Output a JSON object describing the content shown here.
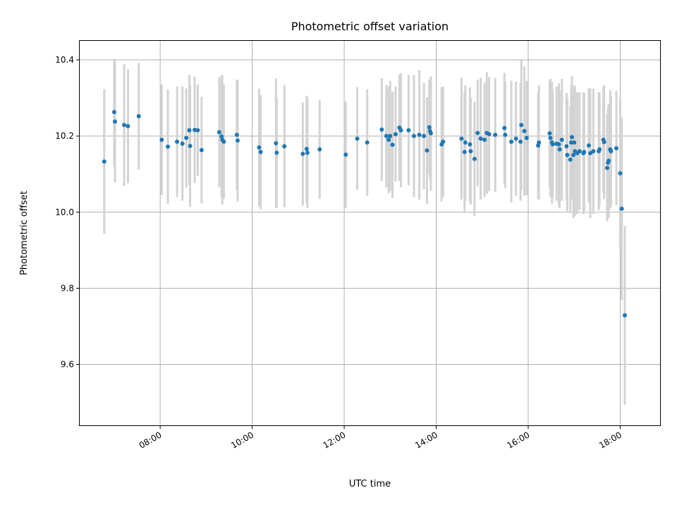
{
  "chart_data": {
    "type": "scatter",
    "title": "Photometric offset variation",
    "xlabel": "UTC time",
    "ylabel": "Photometric offset",
    "x_tick_labels": [
      "08:00",
      "10:00",
      "12:00",
      "14:00",
      "16:00",
      "18:00"
    ],
    "y_tick_labels": [
      "9.6",
      "9.8",
      "10.0",
      "10.2",
      "10.4"
    ],
    "xlim": [
      "06:15",
      "18:52"
    ],
    "ylim": [
      9.44,
      10.45
    ],
    "grid": true,
    "colors": {
      "point": "#1f77b4",
      "errorbar": "#d3d3d3"
    },
    "points": [
      {
        "x": "06:47",
        "y": 10.133,
        "err": 0.19
      },
      {
        "x": "07:00",
        "y": 10.263,
        "err": 0.14
      },
      {
        "x": "07:01",
        "y": 10.238,
        "err": 0.16
      },
      {
        "x": "07:13",
        "y": 10.229,
        "err": 0.16
      },
      {
        "x": "07:18",
        "y": 10.226,
        "err": 0.15
      },
      {
        "x": "07:32",
        "y": 10.252,
        "err": 0.14
      },
      {
        "x": "08:02",
        "y": 10.19,
        "err": 0.145
      },
      {
        "x": "08:10",
        "y": 10.172,
        "err": 0.15
      },
      {
        "x": "08:22",
        "y": 10.185,
        "err": 0.145
      },
      {
        "x": "08:29",
        "y": 10.18,
        "err": 0.15
      },
      {
        "x": "08:34",
        "y": 10.195,
        "err": 0.13
      },
      {
        "x": "08:38",
        "y": 10.215,
        "err": 0.145
      },
      {
        "x": "08:39",
        "y": 10.174,
        "err": 0.16
      },
      {
        "x": "08:45",
        "y": 10.216,
        "err": 0.14
      },
      {
        "x": "08:49",
        "y": 10.215,
        "err": 0.12
      },
      {
        "x": "08:54",
        "y": 10.163,
        "err": 0.14
      },
      {
        "x": "09:17",
        "y": 10.21,
        "err": 0.145
      },
      {
        "x": "09:20",
        "y": 10.199,
        "err": 0.16
      },
      {
        "x": "09:21",
        "y": 10.19,
        "err": 0.17
      },
      {
        "x": "09:23",
        "y": 10.185,
        "err": 0.15
      },
      {
        "x": "09:40",
        "y": 10.203,
        "err": 0.145
      },
      {
        "x": "09:41",
        "y": 10.188,
        "err": 0.16
      },
      {
        "x": "10:09",
        "y": 10.17,
        "err": 0.155
      },
      {
        "x": "10:11",
        "y": 10.158,
        "err": 0.15
      },
      {
        "x": "10:31",
        "y": 10.181,
        "err": 0.17
      },
      {
        "x": "10:32",
        "y": 10.156,
        "err": 0.145
      },
      {
        "x": "10:42",
        "y": 10.173,
        "err": 0.16
      },
      {
        "x": "11:06",
        "y": 10.153,
        "err": 0.135
      },
      {
        "x": "11:11",
        "y": 10.166,
        "err": 0.14
      },
      {
        "x": "11:12",
        "y": 10.156,
        "err": 0.145
      },
      {
        "x": "11:28",
        "y": 10.165,
        "err": 0.13
      },
      {
        "x": "12:02",
        "y": 10.151,
        "err": 0.14
      },
      {
        "x": "12:17",
        "y": 10.193,
        "err": 0.135
      },
      {
        "x": "12:30",
        "y": 10.183,
        "err": 0.14
      },
      {
        "x": "12:49",
        "y": 10.217,
        "err": 0.135
      },
      {
        "x": "12:55",
        "y": 10.2,
        "err": 0.135
      },
      {
        "x": "12:58",
        "y": 10.19,
        "err": 0.14
      },
      {
        "x": "13:00",
        "y": 10.2,
        "err": 0.145
      },
      {
        "x": "13:03",
        "y": 10.177,
        "err": 0.14
      },
      {
        "x": "13:07",
        "y": 10.205,
        "err": 0.125
      },
      {
        "x": "13:12",
        "y": 10.222,
        "err": 0.14
      },
      {
        "x": "13:14",
        "y": 10.215,
        "err": 0.15
      },
      {
        "x": "13:24",
        "y": 10.215,
        "err": 0.145
      },
      {
        "x": "13:31",
        "y": 10.2,
        "err": 0.16
      },
      {
        "x": "13:38",
        "y": 10.203,
        "err": 0.17
      },
      {
        "x": "13:44",
        "y": 10.2,
        "err": 0.14
      },
      {
        "x": "13:48",
        "y": 10.162,
        "err": 0.14
      },
      {
        "x": "13:51",
        "y": 10.223,
        "err": 0.125
      },
      {
        "x": "13:52",
        "y": 10.213,
        "err": 0.125
      },
      {
        "x": "13:53",
        "y": 10.207,
        "err": 0.15
      },
      {
        "x": "14:07",
        "y": 10.178,
        "err": 0.15
      },
      {
        "x": "14:09",
        "y": 10.185,
        "err": 0.145
      },
      {
        "x": "14:33",
        "y": 10.193,
        "err": 0.16
      },
      {
        "x": "14:37",
        "y": 10.158,
        "err": 0.16
      },
      {
        "x": "14:38",
        "y": 10.183,
        "err": 0.15
      },
      {
        "x": "14:44",
        "y": 10.178,
        "err": 0.15
      },
      {
        "x": "14:45",
        "y": 10.16,
        "err": 0.14
      },
      {
        "x": "14:50",
        "y": 10.14,
        "err": 0.15
      },
      {
        "x": "14:54",
        "y": 10.208,
        "err": 0.14
      },
      {
        "x": "14:58",
        "y": 10.193,
        "err": 0.16
      },
      {
        "x": "15:03",
        "y": 10.19,
        "err": 0.15
      },
      {
        "x": "15:06",
        "y": 10.208,
        "err": 0.16
      },
      {
        "x": "15:09",
        "y": 10.205,
        "err": 0.15
      },
      {
        "x": "15:17",
        "y": 10.203,
        "err": 0.15
      },
      {
        "x": "15:29",
        "y": 10.221,
        "err": 0.145
      },
      {
        "x": "15:30",
        "y": 10.203,
        "err": 0.14
      },
      {
        "x": "15:38",
        "y": 10.185,
        "err": 0.16
      },
      {
        "x": "15:44",
        "y": 10.193,
        "err": 0.15
      },
      {
        "x": "15:50",
        "y": 10.185,
        "err": 0.155
      },
      {
        "x": "15:51",
        "y": 10.229,
        "err": 0.17
      },
      {
        "x": "15:55",
        "y": 10.213,
        "err": 0.17
      },
      {
        "x": "15:58",
        "y": 10.195,
        "err": 0.15
      },
      {
        "x": "16:13",
        "y": 10.175,
        "err": 0.14
      },
      {
        "x": "16:14",
        "y": 10.183,
        "err": 0.15
      },
      {
        "x": "16:28",
        "y": 10.207,
        "err": 0.14
      },
      {
        "x": "16:29",
        "y": 10.195,
        "err": 0.155
      },
      {
        "x": "16:31",
        "y": 10.183,
        "err": 0.16
      },
      {
        "x": "16:32",
        "y": 10.178,
        "err": 0.14
      },
      {
        "x": "16:37",
        "y": 10.18,
        "err": 0.15
      },
      {
        "x": "16:40",
        "y": 10.178,
        "err": 0.16
      },
      {
        "x": "16:41",
        "y": 10.165,
        "err": 0.155
      },
      {
        "x": "16:44",
        "y": 10.19,
        "err": 0.16
      },
      {
        "x": "16:50",
        "y": 10.173,
        "err": 0.14
      },
      {
        "x": "16:51",
        "y": 10.15,
        "err": 0.15
      },
      {
        "x": "16:55",
        "y": 10.138,
        "err": 0.14
      },
      {
        "x": "16:56",
        "y": 10.183,
        "err": 0.15
      },
      {
        "x": "16:57",
        "y": 10.197,
        "err": 0.16
      },
      {
        "x": "16:59",
        "y": 10.15,
        "err": 0.165
      },
      {
        "x": "17:00",
        "y": 10.183,
        "err": 0.15
      },
      {
        "x": "17:01",
        "y": 10.16,
        "err": 0.17
      },
      {
        "x": "17:04",
        "y": 10.155,
        "err": 0.16
      },
      {
        "x": "17:07",
        "y": 10.16,
        "err": 0.155
      },
      {
        "x": "17:12",
        "y": 10.155,
        "err": 0.16
      },
      {
        "x": "17:13",
        "y": 10.158,
        "err": 0.155
      },
      {
        "x": "17:19",
        "y": 10.175,
        "err": 0.15
      },
      {
        "x": "17:21",
        "y": 10.155,
        "err": 0.17
      },
      {
        "x": "17:25",
        "y": 10.16,
        "err": 0.165
      },
      {
        "x": "17:32",
        "y": 10.16,
        "err": 0.155
      },
      {
        "x": "17:33",
        "y": 10.165,
        "err": 0.15
      },
      {
        "x": "17:38",
        "y": 10.19,
        "err": 0.14
      },
      {
        "x": "17:39",
        "y": 10.184,
        "err": 0.15
      },
      {
        "x": "17:43",
        "y": 10.116,
        "err": 0.14
      },
      {
        "x": "17:44",
        "y": 10.13,
        "err": 0.145
      },
      {
        "x": "17:45",
        "y": 10.135,
        "err": 0.15
      },
      {
        "x": "17:47",
        "y": 10.165,
        "err": 0.155
      },
      {
        "x": "17:48",
        "y": 10.16,
        "err": 0.145
      },
      {
        "x": "17:55",
        "y": 10.168,
        "err": 0.15
      },
      {
        "x": "18:00",
        "y": 10.102,
        "err": 0.2
      },
      {
        "x": "18:02",
        "y": 10.009,
        "err": 0.24
      },
      {
        "x": "18:06",
        "y": 9.729,
        "err": 0.235
      }
    ]
  }
}
